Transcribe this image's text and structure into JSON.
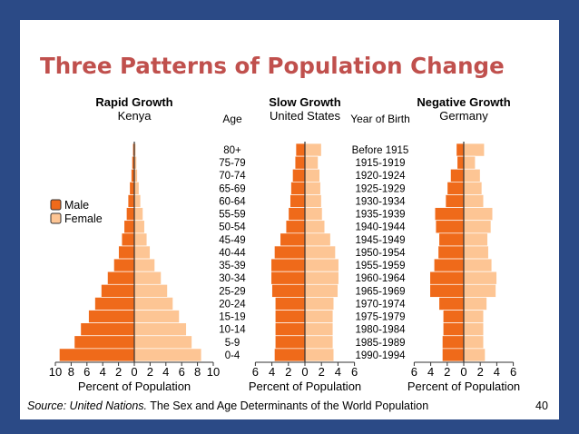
{
  "slide": {
    "title": "Three Patterns of Population Change",
    "footer_source_italic": "Source: United Nations.",
    "footer_rest": " The Sex and Age Determinants of the World Population",
    "slide_number": "40"
  },
  "colors": {
    "male": "#ef6a1a",
    "female": "#fdc594",
    "title": "#c0504d",
    "background": "#2b4a86"
  },
  "chart_data": {
    "type": "bar",
    "orientation": "horizontal",
    "title": "Three Patterns of Population Change",
    "age_header": "Age",
    "year_header": "Year of Birth",
    "age_groups": [
      "80+",
      "75-79",
      "70-74",
      "65-69",
      "60-64",
      "55-59",
      "50-54",
      "45-49",
      "40-44",
      "35-39",
      "30-34",
      "25-29",
      "20-24",
      "15-19",
      "10-14",
      "5-9",
      "0-4"
    ],
    "birth_years": [
      "Before 1915",
      "1915-1919",
      "1920-1924",
      "1925-1929",
      "1930-1934",
      "1935-1939",
      "1940-1944",
      "1945-1949",
      "1950-1954",
      "1955-1959",
      "1960-1964",
      "1965-1969",
      "1970-1974",
      "1975-1979",
      "1980-1984",
      "1985-1989",
      "1990-1994"
    ],
    "legend": [
      {
        "label": "Male",
        "color": "#ef6a1a"
      },
      {
        "label": "Female",
        "color": "#fdc594"
      }
    ],
    "xlabel": "Percent of Population",
    "pyramids": [
      {
        "heading": "Rapid Growth",
        "country": "Kenya",
        "xlim": [
          -10,
          10
        ],
        "ticks": [
          "10",
          "8",
          "6",
          "4",
          "2",
          "0",
          "2",
          "4",
          "6",
          "8",
          "10"
        ],
        "male": [
          0.2,
          0.3,
          0.4,
          0.6,
          0.8,
          1.0,
          1.3,
          1.6,
          2.0,
          2.6,
          3.4,
          4.2,
          5.0,
          5.8,
          6.8,
          7.6,
          9.5
        ],
        "female": [
          0.2,
          0.3,
          0.4,
          0.6,
          0.8,
          1.1,
          1.3,
          1.6,
          2.0,
          2.6,
          3.4,
          4.2,
          4.9,
          5.7,
          6.6,
          7.3,
          8.5
        ]
      },
      {
        "heading": "Slow Growth",
        "country": "United States",
        "xlim": [
          -6,
          6
        ],
        "ticks": [
          "6",
          "4",
          "2",
          "0",
          "2",
          "4",
          "6"
        ],
        "male": [
          1.1,
          1.2,
          1.5,
          1.7,
          1.8,
          2.0,
          2.3,
          3.0,
          3.7,
          4.1,
          4.1,
          4.0,
          3.6,
          3.6,
          3.6,
          3.6,
          3.7
        ],
        "female": [
          2.0,
          1.6,
          1.8,
          1.9,
          2.0,
          2.1,
          2.4,
          3.1,
          3.7,
          4.1,
          4.1,
          4.0,
          3.5,
          3.4,
          3.4,
          3.4,
          3.5
        ]
      },
      {
        "heading": "Negative Growth",
        "country": "Germany",
        "xlim": [
          -6,
          6
        ],
        "ticks": [
          "6",
          "4",
          "2",
          "0",
          "2",
          "4",
          "6"
        ],
        "male": [
          0.9,
          0.8,
          1.6,
          2.0,
          2.2,
          3.5,
          3.4,
          3.0,
          3.1,
          3.6,
          4.1,
          4.1,
          3.0,
          2.5,
          2.5,
          2.6,
          2.6
        ],
        "female": [
          2.5,
          1.4,
          2.0,
          2.2,
          2.4,
          3.5,
          3.3,
          2.9,
          3.0,
          3.4,
          4.0,
          3.9,
          2.8,
          2.4,
          2.4,
          2.4,
          2.6
        ]
      }
    ]
  }
}
